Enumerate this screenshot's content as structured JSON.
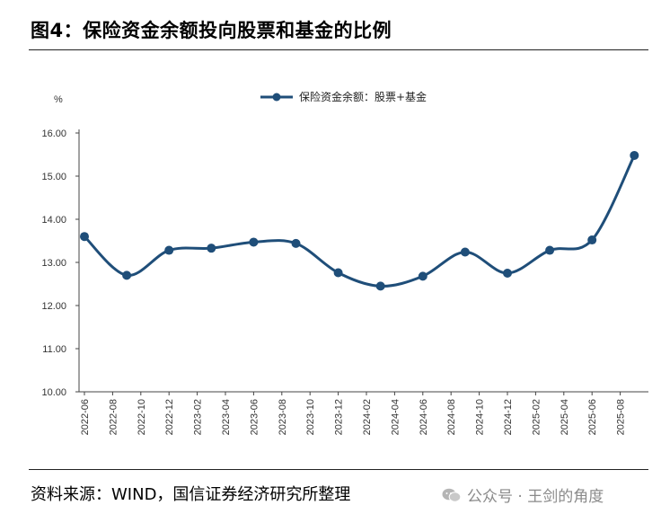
{
  "figure_title": "图4：保险资金余额投向股票和基金的比例",
  "source_note": "资料来源：WIND，国信证券经济研究所整理",
  "watermark": {
    "text": "公众号 · 王剑的角度",
    "icon": "wechat-icon"
  },
  "colors": {
    "series": "#1f4e79",
    "axis": "#444444"
  },
  "chart_data": {
    "type": "line",
    "title": "",
    "ylabel": "%",
    "xlabel": "",
    "ylim": [
      10,
      16
    ],
    "y_ticks": [
      "10.00",
      "11.00",
      "12.00",
      "13.00",
      "14.00",
      "15.00",
      "16.00"
    ],
    "categories": [
      "2022-06",
      "2022-08",
      "2022-10",
      "2022-12",
      "2023-02",
      "2023-04",
      "2023-06",
      "2023-08",
      "2023-10",
      "2023-12",
      "2024-02",
      "2024-04",
      "2024-06",
      "2024-08",
      "2024-10",
      "2024-12",
      "2025-02",
      "2025-04",
      "2025-06",
      "2025-08"
    ],
    "legend": "top-center",
    "grid": false,
    "series": [
      {
        "name": "保险资金余额：股票+基金",
        "points": [
          {
            "x": "2022-06",
            "y": 13.6
          },
          {
            "x": "2022-09",
            "y": 12.7
          },
          {
            "x": "2022-12",
            "y": 13.28
          },
          {
            "x": "2023-03",
            "y": 13.33
          },
          {
            "x": "2023-06",
            "y": 13.47
          },
          {
            "x": "2023-09",
            "y": 13.44
          },
          {
            "x": "2023-12",
            "y": 12.76
          },
          {
            "x": "2024-03",
            "y": 12.45
          },
          {
            "x": "2024-06",
            "y": 12.68
          },
          {
            "x": "2024-09",
            "y": 13.24
          },
          {
            "x": "2024-12",
            "y": 12.75
          },
          {
            "x": "2025-03",
            "y": 13.28
          },
          {
            "x": "2025-06",
            "y": 13.52
          },
          {
            "x": "2025-09",
            "y": 15.48
          }
        ]
      }
    ]
  }
}
